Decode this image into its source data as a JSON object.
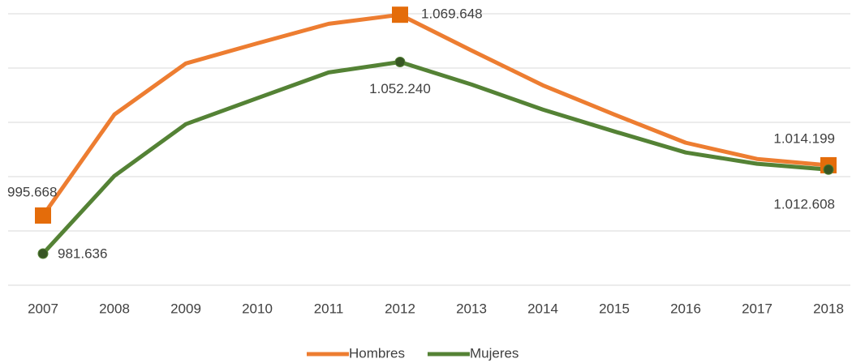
{
  "chart_data": {
    "type": "line",
    "categories": [
      "2007",
      "2008",
      "2009",
      "2010",
      "2011",
      "2012",
      "2013",
      "2014",
      "2015",
      "2016",
      "2017",
      "2018"
    ],
    "series": [
      {
        "name": "Hombres",
        "color": "#ed7d31",
        "marker_color": "#e46c0a",
        "values": [
          995668,
          1032900,
          1051700,
          1059100,
          1066300,
          1069648,
          1056500,
          1043650,
          1032900,
          1022500,
          1016500,
          1014199
        ],
        "value_labels": [
          "995.668",
          null,
          null,
          null,
          null,
          "1.069.648",
          null,
          null,
          null,
          null,
          null,
          "1.014.199"
        ]
      },
      {
        "name": "Mujeres",
        "color": "#548235",
        "marker_color": "#375623",
        "values": [
          981636,
          1010270,
          1029340,
          1038900,
          1048400,
          1052240,
          1043950,
          1034700,
          1026660,
          1018900,
          1014740,
          1012608
        ],
        "value_labels": [
          "981.636",
          null,
          null,
          null,
          null,
          "1.052.240",
          null,
          null,
          null,
          null,
          null,
          "1.012.608"
        ]
      }
    ],
    "ylim": [
      970000,
      1070000
    ],
    "yticks": [
      970000,
      990000,
      1010000,
      1030000,
      1050000,
      1070000
    ],
    "grid": true,
    "legend": "bottom"
  }
}
